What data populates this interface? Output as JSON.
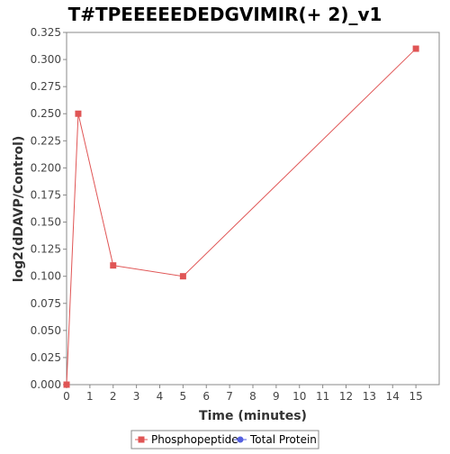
{
  "chart_data": {
    "type": "line",
    "title": "T#TPEEEEEDEDGVIMIR(+ 2)_v1",
    "xlabel": "Time (minutes)",
    "ylabel": "log2(dDAVP/Control)",
    "xlim": [
      0,
      16
    ],
    "ylim": [
      0,
      0.325
    ],
    "x_ticks": [
      0,
      1,
      2,
      3,
      4,
      5,
      6,
      7,
      8,
      9,
      10,
      11,
      12,
      13,
      14,
      15
    ],
    "y_ticks": [
      0.0,
      0.025,
      0.05,
      0.075,
      0.1,
      0.125,
      0.15,
      0.175,
      0.2,
      0.225,
      0.25,
      0.275,
      0.3,
      0.325
    ],
    "x_tick_labels": [
      "0",
      "1",
      "2",
      "3",
      "4",
      "5",
      "6",
      "7",
      "8",
      "9",
      "10",
      "11",
      "12",
      "13",
      "14",
      "15"
    ],
    "y_tick_labels": [
      "0.000",
      "0.025",
      "0.050",
      "0.075",
      "0.100",
      "0.125",
      "0.150",
      "0.175",
      "0.200",
      "0.225",
      "0.250",
      "0.275",
      "0.300",
      "0.325"
    ],
    "grid": false,
    "legend_position": "bottom",
    "series": [
      {
        "name": "Phosphopeptide",
        "color": "#e05555",
        "marker": "square",
        "x": [
          0,
          0.5,
          2,
          5,
          15
        ],
        "y": [
          0.0,
          0.25,
          0.11,
          0.1,
          0.31
        ]
      },
      {
        "name": "Total Protein",
        "color": "#5560e0",
        "marker": "circle",
        "x": [],
        "y": []
      }
    ]
  }
}
